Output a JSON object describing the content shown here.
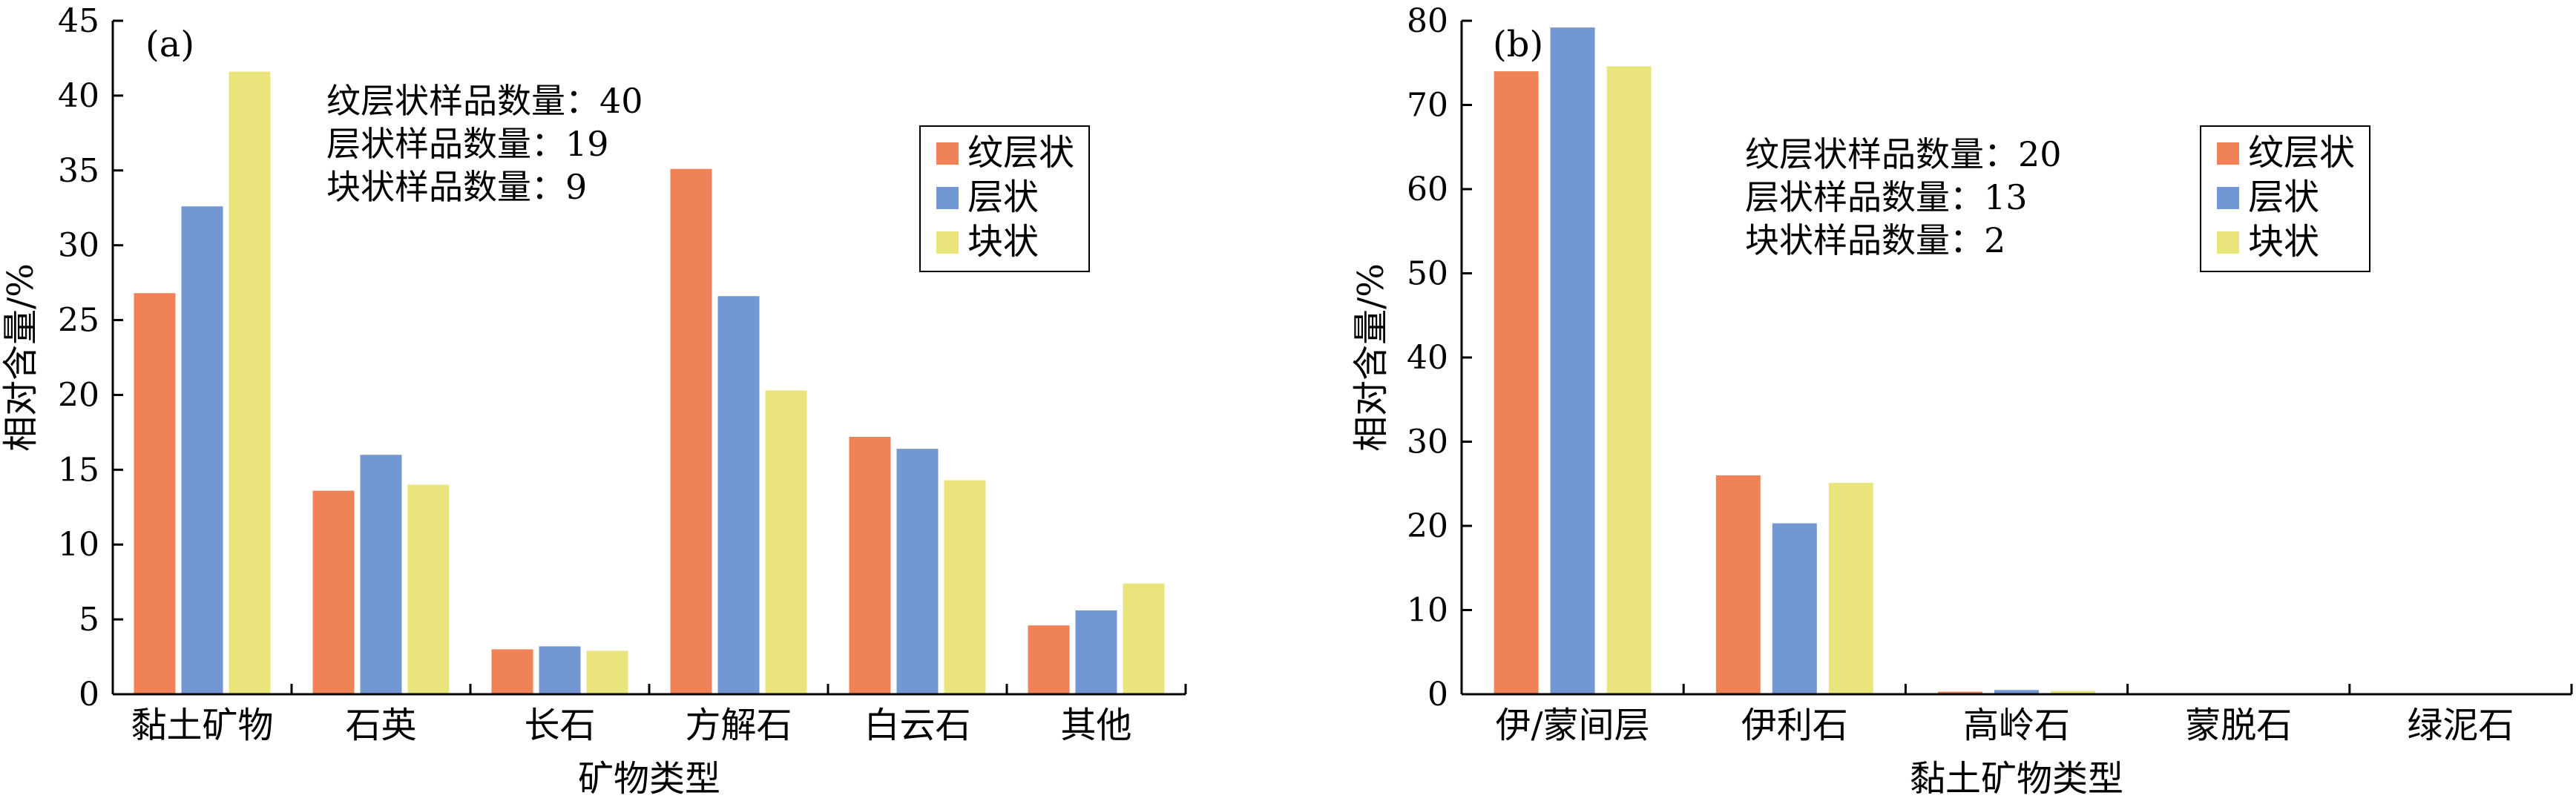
{
  "colors": {
    "layered": "#F08258",
    "bedded": "#7397D3",
    "massive": "#E9E57C"
  },
  "chart_data": [
    {
      "type": "bar",
      "panel_label": "(a)",
      "categories": [
        "黏土矿物",
        "石英",
        "长石",
        "方解石",
        "白云石",
        "其他"
      ],
      "series": [
        {
          "name": "纹层状",
          "values": [
            26.8,
            13.6,
            3.0,
            35.1,
            17.2,
            4.6
          ]
        },
        {
          "name": "层状",
          "values": [
            32.6,
            16.0,
            3.2,
            26.6,
            16.4,
            5.6
          ]
        },
        {
          "name": "块状",
          "values": [
            41.6,
            14.0,
            2.9,
            20.3,
            14.3,
            7.4
          ]
        }
      ],
      "xlabel": "矿物类型",
      "ylabel": "相对含量/%",
      "ylim": [
        0,
        45
      ],
      "yticks": [
        0,
        5,
        10,
        15,
        20,
        25,
        30,
        35,
        40,
        45
      ],
      "annotations": [
        "纹层状样品数量：40",
        "层状样品数量：19",
        "块状样品数量：9"
      ],
      "legend": "top-right",
      "grid": false
    },
    {
      "type": "bar",
      "panel_label": "(b)",
      "categories": [
        "伊/蒙间层",
        "伊利石",
        "高岭石",
        "蒙脱石",
        "绿泥石"
      ],
      "series": [
        {
          "name": "纹层状",
          "values": [
            74.0,
            26.0,
            0.3,
            0.0,
            0.0
          ]
        },
        {
          "name": "层状",
          "values": [
            79.2,
            20.3,
            0.5,
            0.0,
            0.0
          ]
        },
        {
          "name": "块状",
          "values": [
            74.6,
            25.1,
            0.4,
            0.0,
            0.0
          ]
        }
      ],
      "xlabel": "黏土矿物类型",
      "ylabel": "相对含量/%",
      "ylim": [
        0,
        80
      ],
      "yticks": [
        0,
        10,
        20,
        30,
        40,
        50,
        60,
        70,
        80
      ],
      "annotations": [
        "纹层状样品数量：20",
        "层状样品数量：13",
        "块状样品数量：2"
      ],
      "legend": "top-right",
      "grid": false
    }
  ]
}
